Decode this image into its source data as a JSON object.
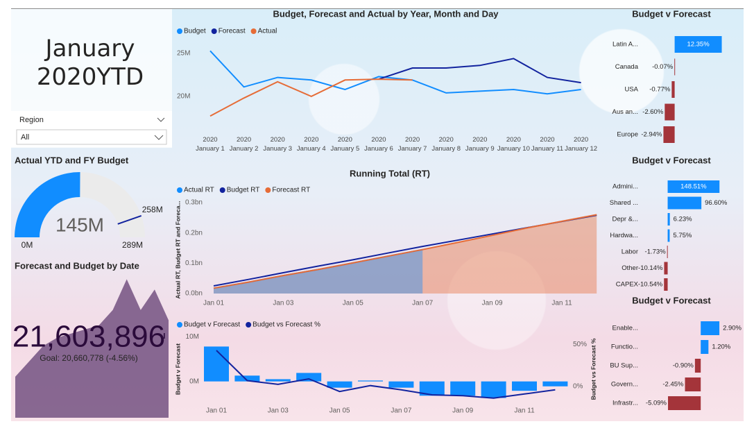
{
  "header": {
    "title": "January 2020YTD"
  },
  "slicer": {
    "label": "Region",
    "value": "All"
  },
  "chart_data": [
    {
      "type": "gauge",
      "title": "Actual YTD and FY Budget",
      "value": 145000000,
      "value_label": "145M",
      "target": 258000000,
      "target_label": "258M",
      "ylim": [
        0,
        289000000
      ],
      "yticks": [
        {
          "value": 0,
          "label": "0M"
        },
        {
          "value": 289000000,
          "label": "289M"
        }
      ],
      "color": "#118dff",
      "target_color": "#12239e"
    },
    {
      "type": "kpi",
      "title": "Forecast and Budget by Date",
      "value": 21603896,
      "value_label": "21,603,896",
      "goal_label": "Goal: 20,660,778 (-4.56%)",
      "values": [
        14000000,
        15500000,
        17000000,
        17800000,
        18200000,
        18600000,
        19000000,
        20500000,
        23500000,
        20500000,
        22500000,
        19500000
      ],
      "ylim": [
        10000000,
        24000000
      ],
      "color": "#7b5a87"
    },
    {
      "type": "line",
      "title": "Budget, Forecast and Actual by Year, Month and Day",
      "categories": [
        "2020 January 1",
        "2020 January 2",
        "2020 January 3",
        "2020 January 4",
        "2020 January 5",
        "2020 January 6",
        "2020 January 7",
        "2020 January 8",
        "2020 January 9",
        "2020 January 10",
        "2020 January 11",
        "2020 January 12"
      ],
      "series": [
        {
          "name": "Budget",
          "color": "#118dff",
          "values": [
            25300000,
            21100000,
            22200000,
            21900000,
            20800000,
            22300000,
            21900000,
            20400000,
            20600000,
            20800000,
            20300000,
            20800000
          ]
        },
        {
          "name": "Forecast",
          "color": "#12239e",
          "values": [
            null,
            null,
            null,
            null,
            null,
            22000000,
            23300000,
            23300000,
            23600000,
            24400000,
            22200000,
            21600000
          ]
        },
        {
          "name": "Actual",
          "color": "#e66c37",
          "values": [
            17700000,
            19800000,
            21700000,
            20000000,
            21900000,
            22000000,
            21900000,
            null,
            null,
            null,
            null,
            null
          ]
        }
      ],
      "ylim": [
        17000000,
        26000000
      ],
      "yticks": [
        {
          "value": 20000000,
          "label": "20M"
        },
        {
          "value": 25000000,
          "label": "25M"
        }
      ],
      "legend": "top-left"
    },
    {
      "type": "area",
      "title": "Running Total (RT)",
      "y_label": "Actual RT, Budget RT and Foreca...",
      "categories": [
        "Jan 01",
        null,
        "Jan 03",
        null,
        "Jan 05",
        null,
        "Jan 07",
        null,
        "Jan 09",
        null,
        "Jan 11",
        null
      ],
      "series": [
        {
          "name": "Actual RT",
          "color": "#118dff",
          "area": true,
          "values": [
            17700000,
            37500000,
            59200000,
            79200000,
            101100000,
            123100000,
            145000000,
            null,
            null,
            null,
            null,
            null
          ]
        },
        {
          "name": "Budget RT",
          "color": "#12239e",
          "area": false,
          "values": [
            25300000,
            46400000,
            68600000,
            90500000,
            111300000,
            133600000,
            155500000,
            175900000,
            196500000,
            217300000,
            237600000,
            258400000
          ]
        },
        {
          "name": "Forecast RT",
          "color": "#e66c37",
          "area": true,
          "values": [
            17700000,
            37500000,
            59200000,
            79200000,
            101100000,
            123100000,
            145000000,
            168300000,
            191900000,
            216300000,
            238500000,
            260100000
          ]
        }
      ],
      "ylim": [
        0,
        300000000
      ],
      "yticks": [
        {
          "value": 0,
          "label": "0.0bn"
        },
        {
          "value": 100000000,
          "label": "0.1bn"
        },
        {
          "value": 200000000,
          "label": "0.2bn"
        },
        {
          "value": 300000000,
          "label": "0.3bn"
        }
      ],
      "legend": "top-left"
    },
    {
      "type": "combo",
      "y_label": "Budget v Forecast",
      "y2_label": "Budget vs Forecast %",
      "categories": [
        "Jan 01",
        null,
        "Jan 03",
        null,
        "Jan 05",
        null,
        "Jan 07",
        null,
        "Jan 09",
        null,
        "Jan 11",
        null
      ],
      "series": [
        {
          "name": "Budget v Forecast",
          "color": "#118dff",
          "values": [
            7800000,
            1300000,
            500000,
            1900000,
            -1400000,
            200000,
            -1400000,
            -3200000,
            -3200000,
            -3700000,
            -2100000,
            -1100000
          ]
        },
        {
          "name": "Budget vs Forecast %",
          "color": "#12239e",
          "axis": "y2",
          "values": [
            43,
            7,
            2.5,
            9,
            -6,
            1,
            -4,
            -10,
            -11,
            -14,
            -9,
            -4
          ]
        }
      ],
      "ylim": [
        -7500000,
        10500000
      ],
      "yticks": [
        {
          "value": 0,
          "label": "0M"
        },
        {
          "value": 10000000,
          "label": "10M"
        }
      ],
      "y2lim": [
        -34,
        62
      ],
      "y2ticks": [
        {
          "value": 0,
          "label": "0%"
        },
        {
          "value": 50,
          "label": "50%"
        }
      ],
      "legend": "top-left"
    },
    {
      "type": "hbar",
      "title": "Budget v Forecast",
      "categories": [
        "Latin A...",
        "Canada",
        "USA",
        "Aus an...",
        "Europe"
      ],
      "values": [
        12.35,
        -0.07,
        -0.77,
        -2.6,
        -2.94
      ],
      "value_labels": [
        "12.35%",
        "-0.07%",
        "-0.77%",
        "-2.60%",
        "-2.94%"
      ],
      "xlim": [
        -3.2,
        12.8
      ],
      "positive_color": "#118dff",
      "negative_color": "#a4343a"
    },
    {
      "type": "hbar",
      "title": "Budget v Forecast",
      "categories": [
        "Admini...",
        "Shared ...",
        "Depr &...",
        "Hardwa...",
        "Labor",
        "Other",
        "CAPEX"
      ],
      "values": [
        148.51,
        96.6,
        6.23,
        5.75,
        -1.73,
        -10.14,
        -10.54
      ],
      "value_labels": [
        "148.51%",
        "96.60%",
        "6.23%",
        "5.75%",
        "-1.73%",
        "-10.14%",
        "-10.54%"
      ],
      "xlim": [
        -11,
        150
      ],
      "positive_color": "#118dff",
      "negative_color": "#a4343a"
    },
    {
      "type": "hbar",
      "title": "Budget v Forecast",
      "categories": [
        "Enable...",
        "Functio...",
        "BU Sup...",
        "Govern...",
        "Infrastr..."
      ],
      "values": [
        2.9,
        1.2,
        -0.9,
        -2.45,
        -5.09
      ],
      "value_labels": [
        "2.90%",
        "1.20%",
        "-0.90%",
        "-2.45%",
        "-5.09%"
      ],
      "xlim": [
        -5.2,
        3.0
      ],
      "positive_color": "#118dff",
      "negative_color": "#a4343a"
    }
  ]
}
